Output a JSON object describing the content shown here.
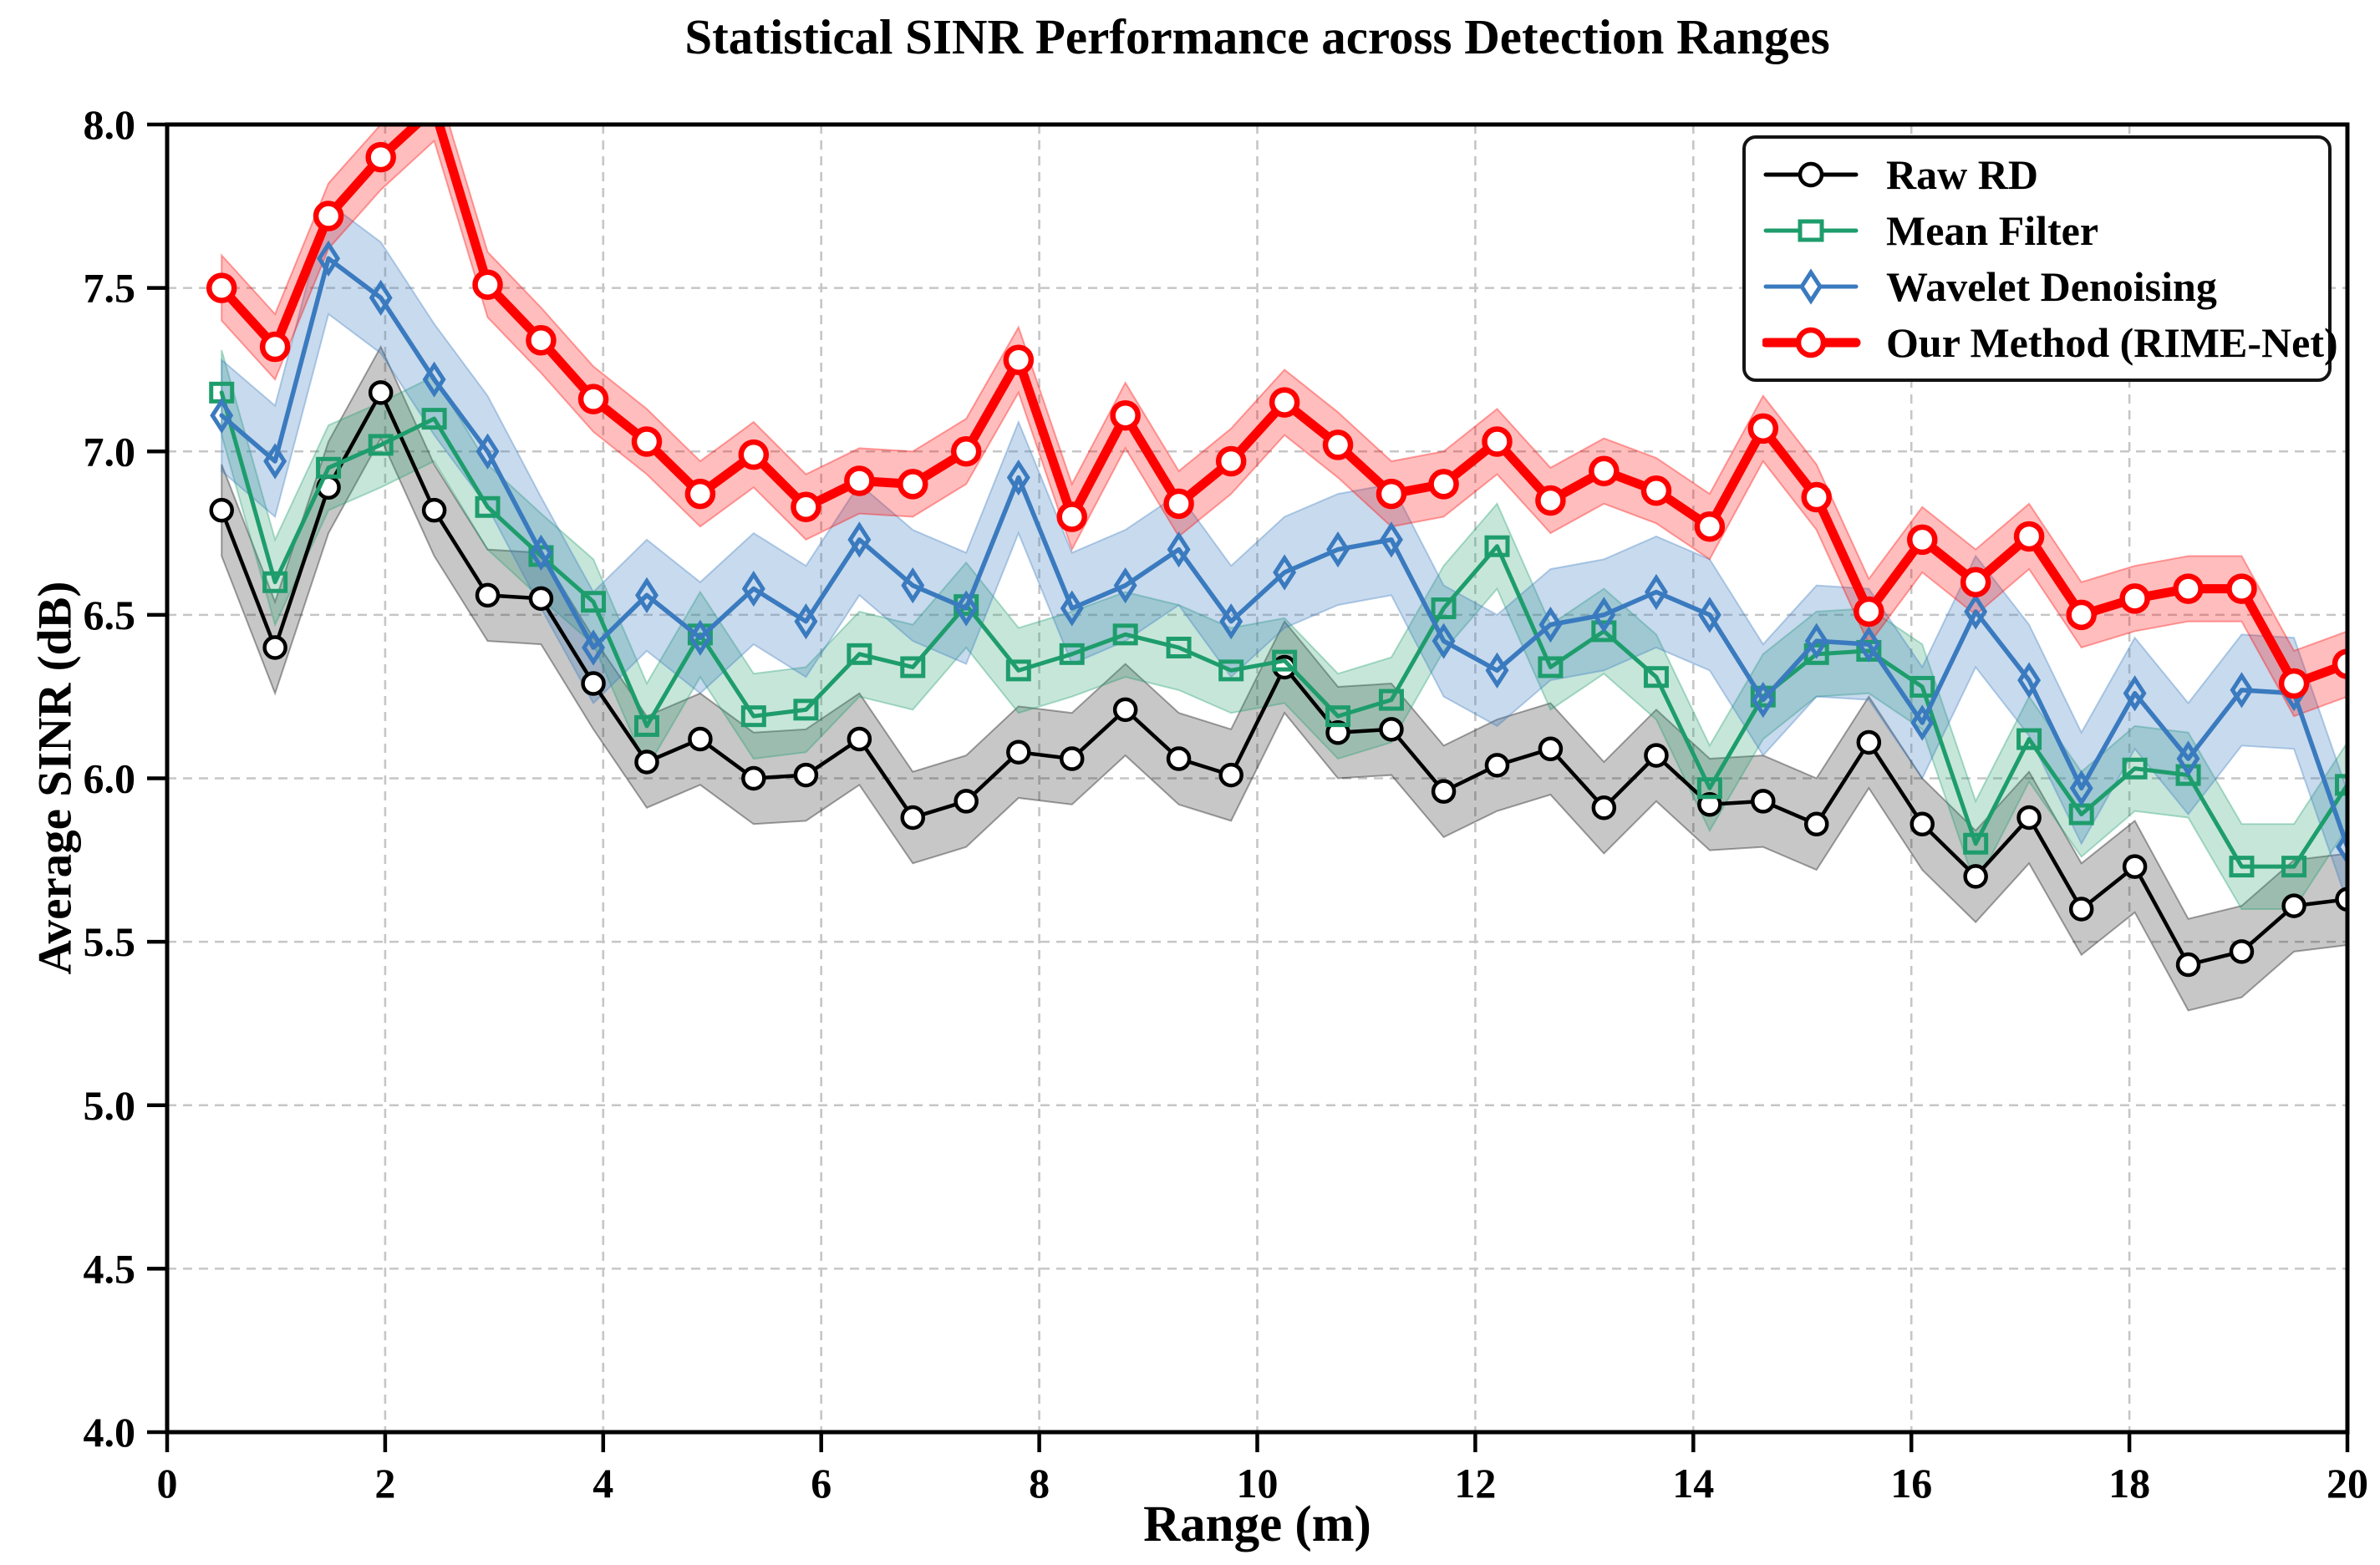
{
  "figure": {
    "title": "Statistical SINR Performance across Detection Ranges",
    "xlabel": "Range (m)",
    "ylabel": "Average SINR (dB)"
  },
  "chart_data": {
    "type": "line",
    "title": "Statistical SINR Performance across Detection Ranges",
    "xlabel": "Range (m)",
    "ylabel": "Average SINR (dB)",
    "xlim": [
      0,
      20
    ],
    "ylim": [
      4.0,
      8.0
    ],
    "grid": "dashed-gray-both-axes",
    "legend_position": "upper right",
    "x_tick_labels": [
      "0",
      "2",
      "4",
      "6",
      "8",
      "10",
      "12",
      "14",
      "16",
      "18",
      "20"
    ],
    "x_tick_values": [
      0,
      2,
      4,
      6,
      8,
      10,
      12,
      14,
      16,
      18,
      20
    ],
    "y_tick_labels": [
      "4.0",
      "4.5",
      "5.0",
      "5.5",
      "6.0",
      "6.5",
      "7.0",
      "7.5",
      "8.0"
    ],
    "y_tick_values": [
      4.0,
      4.5,
      5.0,
      5.5,
      6.0,
      6.5,
      7.0,
      7.5,
      8.0
    ],
    "x": [
      0.5,
      0.99,
      1.48,
      1.96,
      2.45,
      2.94,
      3.43,
      3.91,
      4.4,
      4.89,
      5.38,
      5.86,
      6.35,
      6.84,
      7.33,
      7.81,
      8.3,
      8.79,
      9.28,
      9.76,
      10.25,
      10.74,
      11.23,
      11.71,
      12.2,
      12.69,
      13.18,
      13.66,
      14.15,
      14.64,
      15.13,
      15.61,
      16.1,
      16.59,
      17.08,
      17.56,
      18.05,
      18.54,
      19.03,
      19.51,
      20.0
    ],
    "series": [
      {
        "name": "Raw RD",
        "color": "#000000",
        "marker": "circle",
        "line_width": 4.5,
        "band_halfwidth": 0.14,
        "band_opacity": 0.22,
        "values": [
          6.82,
          6.4,
          6.89,
          7.18,
          6.82,
          6.56,
          6.55,
          6.29,
          6.05,
          6.12,
          6.0,
          6.01,
          6.12,
          5.88,
          5.93,
          6.08,
          6.06,
          6.21,
          6.06,
          6.01,
          6.34,
          6.14,
          6.15,
          5.96,
          6.04,
          6.09,
          5.91,
          6.07,
          5.92,
          5.93,
          5.86,
          6.11,
          5.86,
          5.7,
          5.88,
          5.6,
          5.73,
          5.43,
          5.47,
          5.61,
          5.63
        ]
      },
      {
        "name": "Mean Filter",
        "color": "#1e9d6c",
        "marker": "square",
        "line_width": 5,
        "band_halfwidth": 0.13,
        "band_opacity": 0.25,
        "values": [
          7.18,
          6.6,
          6.95,
          7.02,
          7.1,
          6.83,
          6.68,
          6.54,
          6.16,
          6.44,
          6.19,
          6.21,
          6.38,
          6.34,
          6.53,
          6.33,
          6.38,
          6.44,
          6.4,
          6.33,
          6.36,
          6.19,
          6.24,
          6.52,
          6.71,
          6.34,
          6.45,
          6.31,
          5.97,
          6.25,
          6.38,
          6.39,
          6.28,
          5.8,
          6.12,
          5.89,
          6.03,
          6.01,
          5.73,
          5.73,
          5.98
        ]
      },
      {
        "name": "Wavelet Denoising",
        "color": "#3a7abf",
        "marker": "diamond",
        "line_width": 5.5,
        "band_halfwidth": 0.17,
        "band_opacity": 0.28,
        "values": [
          7.11,
          6.97,
          7.59,
          7.47,
          7.22,
          7.0,
          6.69,
          6.4,
          6.56,
          6.43,
          6.58,
          6.48,
          6.73,
          6.59,
          6.52,
          6.92,
          6.52,
          6.59,
          6.7,
          6.48,
          6.63,
          6.7,
          6.73,
          6.42,
          6.33,
          6.47,
          6.5,
          6.57,
          6.5,
          6.24,
          6.42,
          6.41,
          6.17,
          6.51,
          6.3,
          5.97,
          6.26,
          6.06,
          6.27,
          6.26,
          5.79
        ]
      },
      {
        "name": "Our Method (RIME-Net)",
        "color": "#ff0000",
        "marker": "circle",
        "line_width": 11,
        "band_halfwidth": 0.1,
        "band_opacity": 0.26,
        "values": [
          7.5,
          7.32,
          7.72,
          7.9,
          8.05,
          7.51,
          7.34,
          7.16,
          7.03,
          6.87,
          6.99,
          6.83,
          6.91,
          6.9,
          7.0,
          7.28,
          6.8,
          7.11,
          6.84,
          6.97,
          7.15,
          7.02,
          6.87,
          6.9,
          7.03,
          6.85,
          6.94,
          6.88,
          6.77,
          7.07,
          6.86,
          6.51,
          6.73,
          6.6,
          6.74,
          6.5,
          6.55,
          6.58,
          6.58,
          6.29,
          6.35
        ]
      }
    ]
  }
}
